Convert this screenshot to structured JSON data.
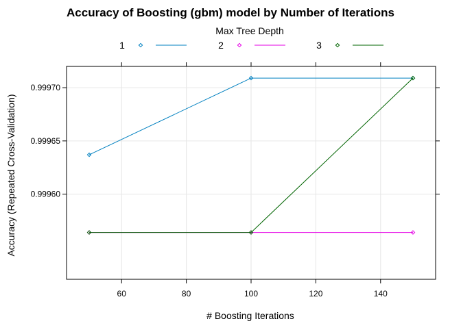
{
  "chart_data": {
    "type": "line",
    "title": "Accuracy of Boosting (gbm) model by Number of Iterations",
    "legend_title": "Max Tree Depth",
    "legend_placement": "top",
    "xlabel": "# Boosting Iterations",
    "ylabel": "Accuracy (Repeated Cross-Validation)",
    "xlim": [
      43,
      157
    ],
    "ylim": [
      0.99952,
      0.99972
    ],
    "x_ticks": [
      60,
      80,
      100,
      120,
      140
    ],
    "y_ticks": [
      0.9996,
      0.99965,
      0.9997
    ],
    "x_tick_labels": [
      "60",
      "80",
      "100",
      "120",
      "140"
    ],
    "y_tick_labels": [
      "0.99960",
      "0.99965",
      "0.99970"
    ],
    "grid": true,
    "x": [
      50,
      100,
      150
    ],
    "series": [
      {
        "name": "1",
        "color": "#0080c0",
        "values": [
          0.999637,
          0.999709,
          0.999709
        ]
      },
      {
        "name": "2",
        "color": "#e500e5",
        "values": [
          0.999564,
          0.999564,
          0.999564
        ]
      },
      {
        "name": "3",
        "color": "#006400",
        "values": [
          0.999564,
          0.999564,
          0.999709
        ]
      }
    ]
  }
}
